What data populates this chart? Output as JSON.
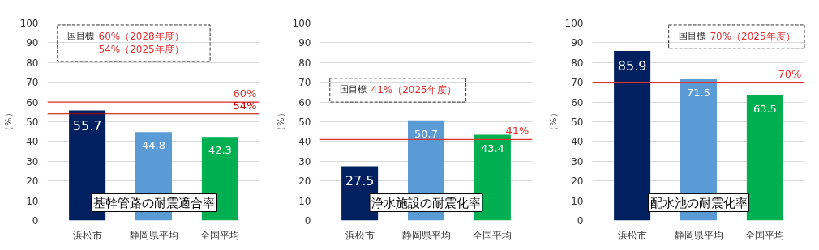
{
  "chart_data": [
    {
      "type": "bar",
      "title": "基幹管路の耐震適合率",
      "ylabel": "（%）",
      "categories": [
        "浜松市",
        "静岡県平均",
        "全国平均"
      ],
      "values": [
        55.7,
        44.8,
        42.3
      ],
      "colors": [
        "#002060",
        "#5b9bd5",
        "#00b050"
      ],
      "ylim": [
        0,
        100
      ],
      "yticks": [
        0,
        10,
        20,
        30,
        40,
        50,
        60,
        70,
        80,
        90,
        100
      ],
      "grid": "y",
      "data_labels": true,
      "ref_lines": [
        {
          "axis": "y",
          "value": 60,
          "label": "60%",
          "color": "#e03030"
        },
        {
          "axis": "y",
          "value": 54,
          "label": "54%",
          "color": "#c00000"
        }
      ],
      "annotations": [
        "国目標",
        "60%（2028年度）",
        "54%（2025年度）"
      ]
    },
    {
      "type": "bar",
      "title": "浄水施設の耐震化率",
      "ylabel": "（%）",
      "categories": [
        "浜松市",
        "静岡県平均",
        "全国平均"
      ],
      "values": [
        27.5,
        50.7,
        43.4
      ],
      "colors": [
        "#002060",
        "#5b9bd5",
        "#00b050"
      ],
      "ylim": [
        0,
        100
      ],
      "yticks": [
        0,
        10,
        20,
        30,
        40,
        50,
        60,
        70,
        80,
        90,
        100
      ],
      "grid": "y",
      "data_labels": true,
      "ref_lines": [
        {
          "axis": "y",
          "value": 41,
          "label": "41%",
          "color": "#e03030"
        }
      ],
      "annotations": [
        "国目標",
        "41%（2025年度）"
      ]
    },
    {
      "type": "bar",
      "title": "配水池の耐震化率",
      "ylabel": "（%）",
      "categories": [
        "浜松市",
        "静岡県平均",
        "全国平均"
      ],
      "values": [
        85.9,
        71.5,
        63.5
      ],
      "colors": [
        "#002060",
        "#5b9bd5",
        "#00b050"
      ],
      "ylim": [
        0,
        100
      ],
      "yticks": [
        0,
        10,
        20,
        30,
        40,
        50,
        60,
        70,
        80,
        90,
        100
      ],
      "grid": "y",
      "data_labels": true,
      "ref_lines": [
        {
          "axis": "y",
          "value": 70,
          "label": "70%",
          "color": "#e03030"
        }
      ],
      "annotations": [
        "国目標",
        "70%（2025年度）"
      ]
    }
  ]
}
